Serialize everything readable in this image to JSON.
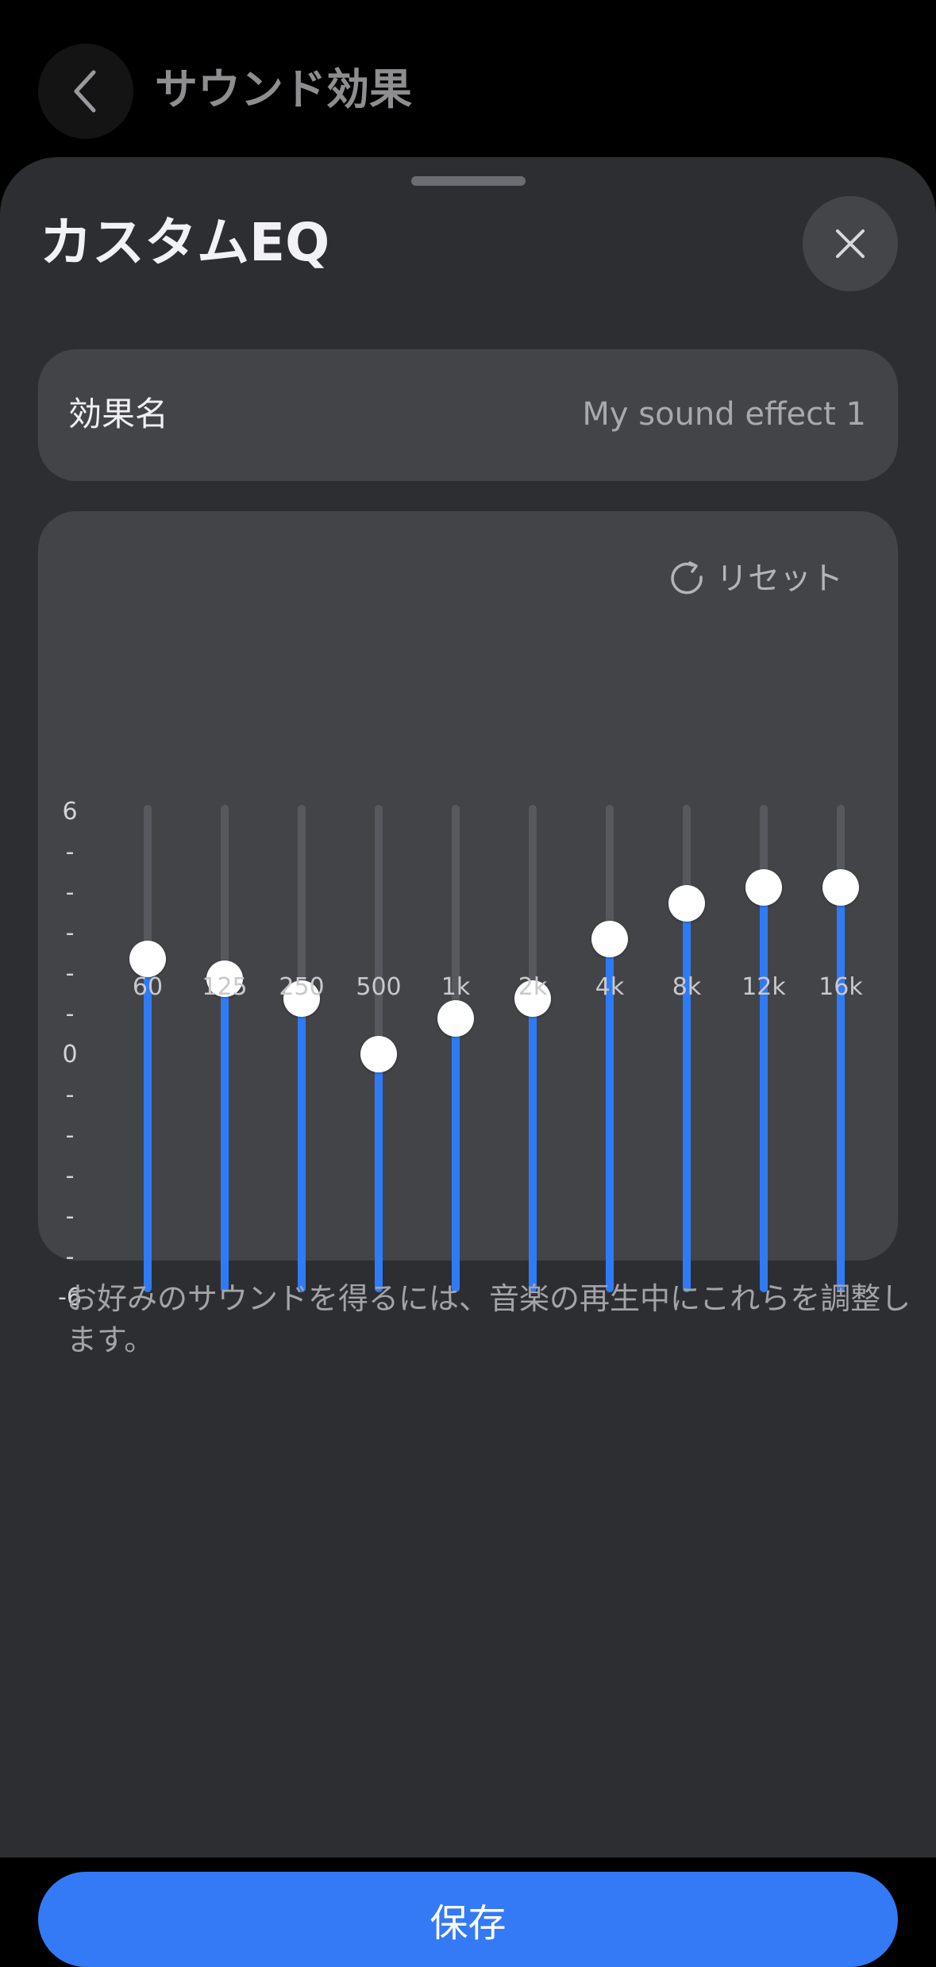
{
  "header": {
    "back_icon": "chevron-left-icon",
    "title": "サウンド効果"
  },
  "sheet": {
    "title": "カスタムEQ",
    "close_icon": "close-icon"
  },
  "effect_name": {
    "label": "効果名",
    "value": "My sound effect 1"
  },
  "equalizer": {
    "reset_icon": "reset-icon",
    "reset_label": "リセット",
    "y_axis": {
      "top": "6",
      "middle": "0",
      "bottom": "-6",
      "minor_tick": "-"
    },
    "range_db": [
      -6,
      6
    ],
    "bands": [
      {
        "label": "60",
        "gain_db": 2.4
      },
      {
        "label": "125",
        "gain_db": 1.9
      },
      {
        "label": "250",
        "gain_db": 1.4
      },
      {
        "label": "500",
        "gain_db": 0.0
      },
      {
        "label": "1k",
        "gain_db": 0.9
      },
      {
        "label": "2k",
        "gain_db": 1.4
      },
      {
        "label": "4k",
        "gain_db": 2.9
      },
      {
        "label": "8k",
        "gain_db": 3.8
      },
      {
        "label": "12k",
        "gain_db": 4.2
      },
      {
        "label": "16k",
        "gain_db": 4.2
      }
    ]
  },
  "hint": "お好みのサウンドを得るには、音楽の再生中にこれらを調整します。",
  "save_label": "保存",
  "colors": {
    "accent": "#3479f6",
    "slider_fill": "#2f7bf5",
    "slider_track": "#58595e",
    "card": "#434448",
    "sheet": "#2d2e32"
  }
}
